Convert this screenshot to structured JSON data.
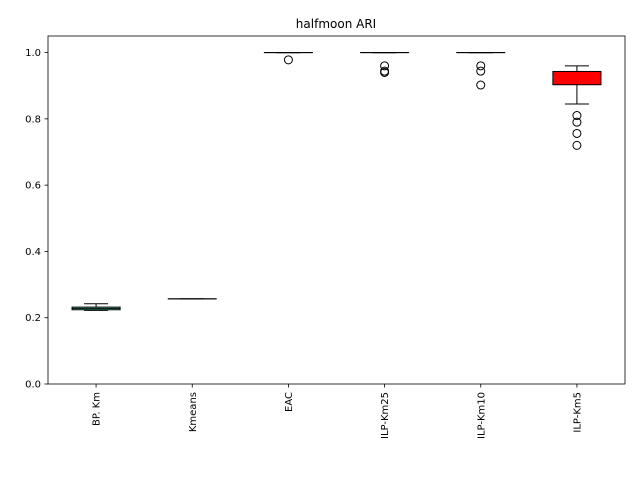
{
  "chart_data": {
    "type": "box",
    "title": "halfmoon ARI",
    "xlabel": "",
    "ylabel": "",
    "ylim": [
      0,
      1.05
    ],
    "yticks": [
      0.0,
      0.2,
      0.4,
      0.6,
      0.8,
      1.0
    ],
    "ytick_labels": [
      "0.0",
      "0.2",
      "0.4",
      "0.6",
      "0.8",
      "1.0"
    ],
    "grid": false,
    "categories": [
      "BP. Km",
      "Kmeans",
      "EAC",
      "ILP-Km25",
      "ILP-Km10",
      "ILP-Km5"
    ],
    "boxes": [
      {
        "label": "BP. Km",
        "whisker_low": 0.222,
        "q1": 0.224,
        "median": 0.228,
        "q3": 0.232,
        "whisker_high": 0.242,
        "outliers": [],
        "color": "#7fffd4"
      },
      {
        "label": "Kmeans",
        "whisker_low": 0.257,
        "q1": 0.257,
        "median": 0.257,
        "q3": 0.257,
        "whisker_high": 0.257,
        "outliers": [],
        "color": "#ffffff"
      },
      {
        "label": "EAC",
        "whisker_low": 1.0,
        "q1": 1.0,
        "median": 1.0,
        "q3": 1.0,
        "whisker_high": 1.0,
        "outliers": [
          0.978
        ],
        "color": "#ffffff"
      },
      {
        "label": "ILP-Km25",
        "whisker_low": 1.0,
        "q1": 1.0,
        "median": 1.0,
        "q3": 1.0,
        "whisker_high": 1.0,
        "outliers": [
          0.96,
          0.944,
          0.94
        ],
        "color": "#ffffff"
      },
      {
        "label": "ILP-Km10",
        "whisker_low": 1.0,
        "q1": 1.0,
        "median": 1.0,
        "q3": 1.0,
        "whisker_high": 1.0,
        "outliers": [
          0.96,
          0.944,
          0.902
        ],
        "color": "#ffffff"
      },
      {
        "label": "ILP-Km5",
        "whisker_low": 0.845,
        "q1": 0.903,
        "median": 0.925,
        "q3": 0.943,
        "whisker_high": 0.96,
        "outliers": [
          0.81,
          0.79,
          0.756,
          0.72
        ],
        "color": "#ff0000"
      }
    ]
  }
}
